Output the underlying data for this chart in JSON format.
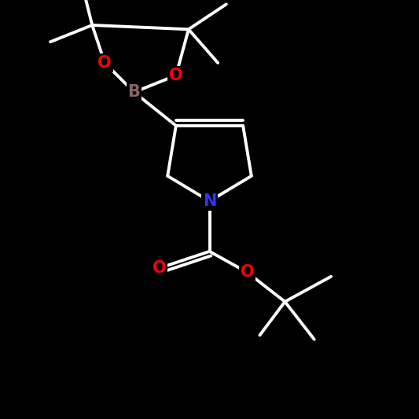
{
  "background_color": "#000000",
  "atom_colors": {
    "C": "#ffffff",
    "N": "#3333ff",
    "O": "#ff0000",
    "B": "#8b6464"
  },
  "bond_color": "#ffffff",
  "bond_width": 2.8,
  "font_size_atoms": 15,
  "fig_size": [
    5.33,
    5.33
  ],
  "dpi": 100,
  "xlim": [
    0,
    10
  ],
  "ylim": [
    0,
    10
  ]
}
